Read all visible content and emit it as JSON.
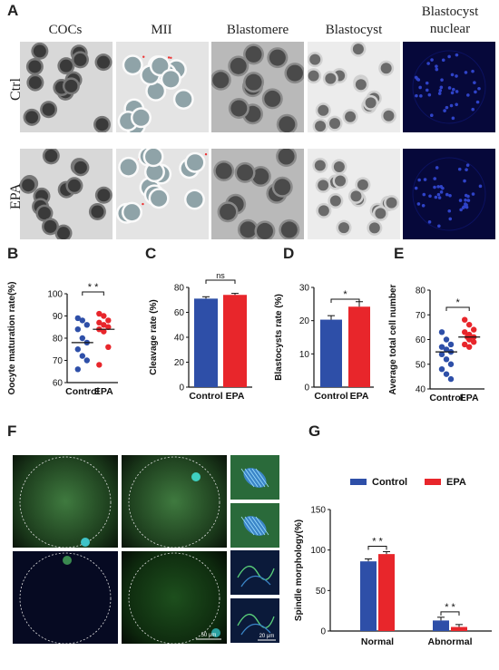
{
  "panel_letters": {
    "a": "A",
    "b": "B",
    "c": "C",
    "d": "D",
    "e": "E",
    "f": "F",
    "g": "G"
  },
  "panel_a": {
    "columns": [
      "COCs",
      "MII",
      "Blastomere",
      "Blastocyst",
      "Blastocyst nuclear"
    ],
    "rows": [
      "Ctrl",
      "EPA"
    ]
  },
  "colors": {
    "control": "#2e4fa8",
    "epa": "#e8262b",
    "green_bg": "#2f5a2f",
    "blue_bg": "#06083a"
  },
  "chart_data": [
    {
      "id": "B",
      "type": "scatter",
      "ylabel": "Oocyte maturation rate(%)",
      "ylim": [
        60,
        100
      ],
      "yticks": [
        60,
        70,
        80,
        90,
        100
      ],
      "categories": [
        "Control",
        "EPA"
      ],
      "significance": "* *",
      "series": [
        {
          "name": "Control",
          "values": [
            89,
            88,
            86,
            84,
            80,
            78,
            75,
            72,
            70,
            66
          ],
          "mean": 78
        },
        {
          "name": "EPA",
          "values": [
            91,
            90,
            88,
            87,
            86,
            85,
            84,
            83,
            76,
            68
          ],
          "mean": 84
        }
      ]
    },
    {
      "id": "C",
      "type": "bar",
      "ylabel": "Cleavage rate (%)",
      "ylim": [
        0,
        80
      ],
      "yticks": [
        0,
        20,
        40,
        60,
        80
      ],
      "categories": [
        "Control",
        "EPA"
      ],
      "values": [
        71,
        74
      ],
      "errors": [
        1.5,
        1.2
      ],
      "significance": "ns"
    },
    {
      "id": "D",
      "type": "bar",
      "ylabel": "Blastocysts rate  (%)",
      "ylim": [
        0,
        30
      ],
      "yticks": [
        0,
        10,
        20,
        30
      ],
      "categories": [
        "Control",
        "EPA"
      ],
      "values": [
        20.3,
        24.2
      ],
      "errors": [
        1.2,
        1.5
      ],
      "significance": "*"
    },
    {
      "id": "E",
      "type": "scatter",
      "ylabel": "Average total cell number",
      "ylim": [
        40,
        80
      ],
      "yticks": [
        40,
        50,
        60,
        70,
        80
      ],
      "categories": [
        "Control",
        "EPA"
      ],
      "significance": "*",
      "series": [
        {
          "name": "Control",
          "values": [
            63,
            60,
            58,
            57,
            56,
            55,
            54,
            52,
            50,
            48,
            46,
            44
          ],
          "mean": 55
        },
        {
          "name": "EPA",
          "values": [
            68,
            66,
            64,
            63,
            62,
            61,
            61,
            60,
            59,
            58,
            57
          ],
          "mean": 61
        }
      ]
    },
    {
      "id": "G",
      "type": "bar",
      "ylabel": "Spindle morphology(%)",
      "ylim": [
        0,
        150
      ],
      "yticks": [
        0,
        50,
        100,
        150
      ],
      "categories": [
        "Normal",
        "Abnormal"
      ],
      "legend": [
        "Control",
        "EPA"
      ],
      "legend_position": "top",
      "series": [
        {
          "name": "Control",
          "values": [
            86,
            13
          ],
          "errors": [
            3,
            4
          ]
        },
        {
          "name": "EPA",
          "values": [
            95,
            5
          ],
          "errors": [
            3,
            3
          ]
        }
      ],
      "significance": [
        "* *",
        "* *"
      ]
    }
  ],
  "scale_bars": {
    "f_main": "50 μm",
    "f_side": "20 μm"
  }
}
